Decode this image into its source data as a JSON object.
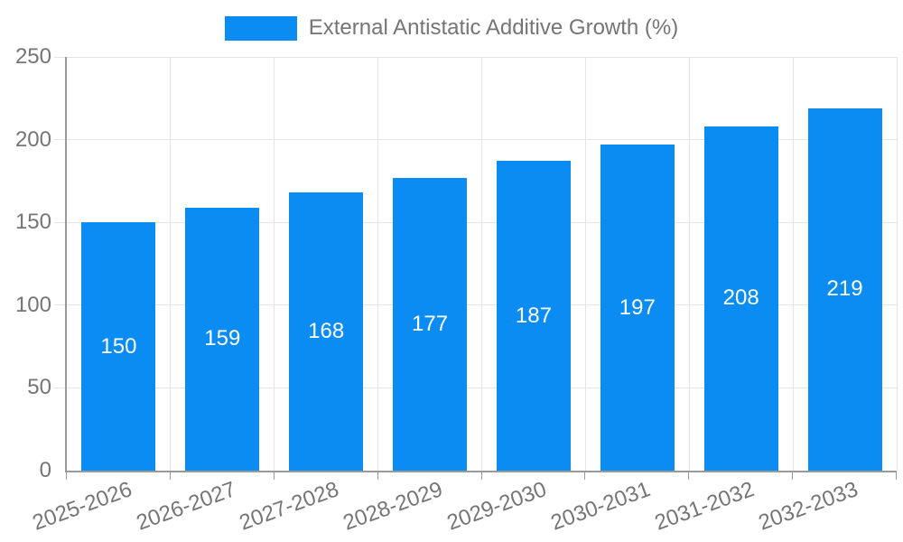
{
  "chart_data": {
    "type": "bar",
    "title": "",
    "categories": [
      "2025-2026",
      "2026-2027",
      "2027-2028",
      "2028-2029",
      "2029-2030",
      "2030-2031",
      "2031-2032",
      "2032-2033"
    ],
    "series": [
      {
        "name": "External Antistatic Additive Growth (%)",
        "values": [
          150,
          159,
          168,
          177,
          187,
          197,
          208,
          219
        ]
      }
    ],
    "xlabel": "",
    "ylabel": "",
    "ylim": [
      0,
      250
    ],
    "yticks": [
      0,
      50,
      100,
      150,
      200,
      250
    ],
    "grid": "on",
    "legend_position": "top",
    "bar_value_labels_shown": true,
    "colors": {
      "bar": "#0b8cf2",
      "value_label": "#ffffff",
      "axis_text": "#757575",
      "axis_line": "#9a9a9a",
      "grid_line": "#e4e4e4",
      "background": "#ffffff"
    }
  }
}
